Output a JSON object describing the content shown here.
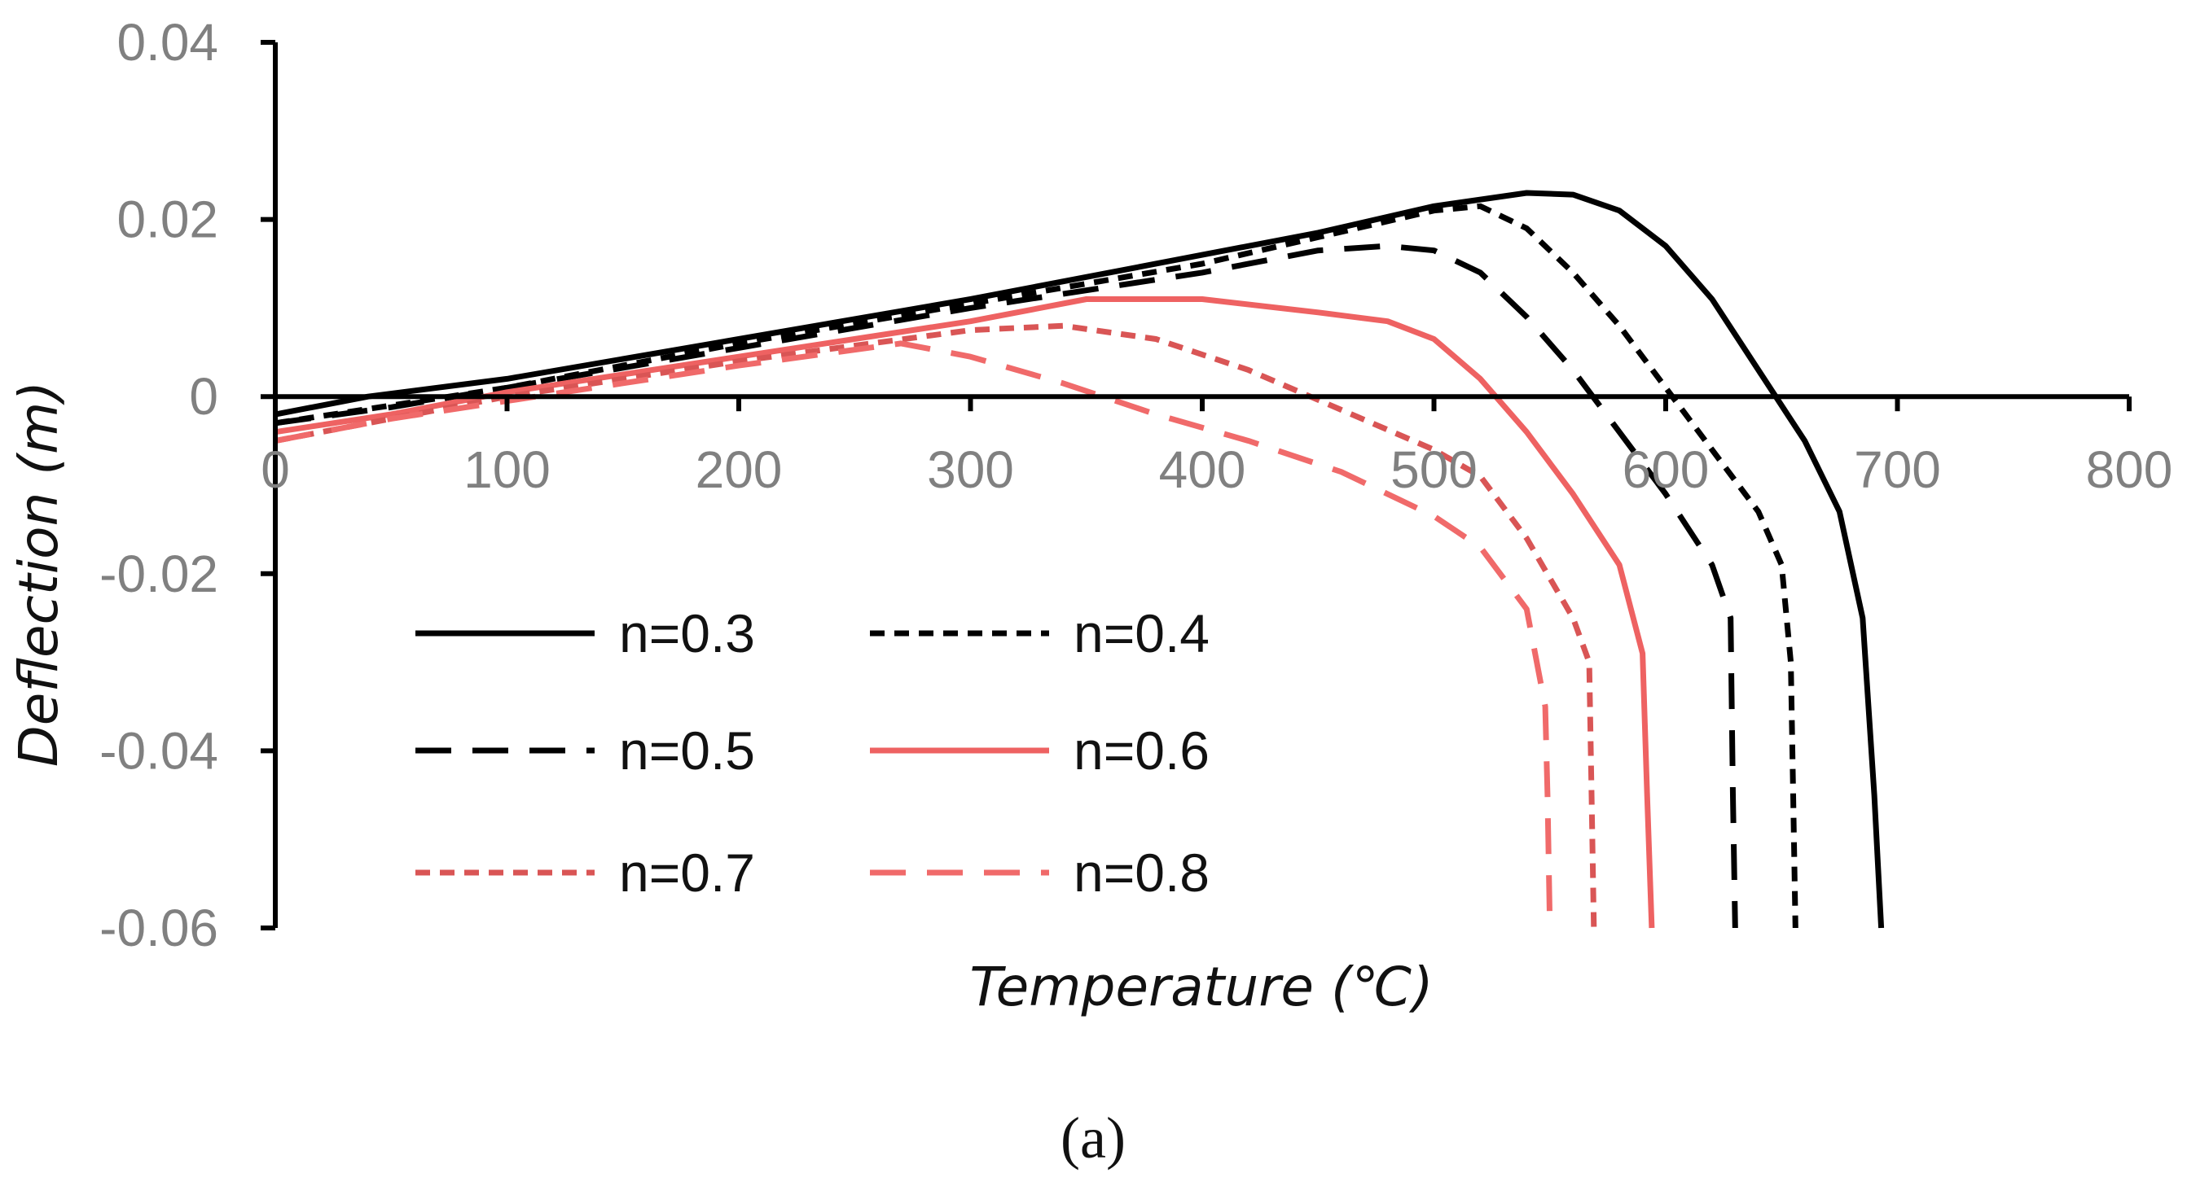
{
  "chart_data": {
    "type": "line",
    "title": "",
    "xlabel": "Temperature (℃)",
    "ylabel": "Deflection (m)",
    "caption": "(a)",
    "xlim": [
      0,
      800
    ],
    "ylim": [
      -0.06,
      0.04
    ],
    "x_ticks": [
      0,
      100,
      200,
      300,
      400,
      500,
      600,
      700,
      800
    ],
    "x_tick_labels": [
      "0",
      "100",
      "200",
      "300",
      "400",
      "500",
      "600",
      "700",
      "800"
    ],
    "y_ticks": [
      -0.06,
      -0.04,
      -0.02,
      0,
      0.02,
      0.04
    ],
    "y_tick_labels": [
      "-0.06",
      "-0.04",
      "-0.02",
      "0",
      "0.02",
      "0.04"
    ],
    "grid": false,
    "legend_position": "lower-left",
    "series": [
      {
        "name": "n=0.3",
        "color": "#000000",
        "dash": "solid",
        "points": [
          [
            0,
            -0.002
          ],
          [
            40,
            0
          ],
          [
            100,
            0.002
          ],
          [
            200,
            0.0065
          ],
          [
            300,
            0.011
          ],
          [
            400,
            0.016
          ],
          [
            450,
            0.0185
          ],
          [
            500,
            0.0215
          ],
          [
            540,
            0.023
          ],
          [
            560,
            0.0228
          ],
          [
            580,
            0.021
          ],
          [
            600,
            0.017
          ],
          [
            620,
            0.011
          ],
          [
            640,
            0.003
          ],
          [
            660,
            -0.005
          ],
          [
            675,
            -0.013
          ],
          [
            685,
            -0.025
          ],
          [
            690,
            -0.045
          ],
          [
            693,
            -0.06
          ]
        ]
      },
      {
        "name": "n=0.4",
        "color": "#000000",
        "dash": "short-dash",
        "points": [
          [
            0,
            -0.003
          ],
          [
            50,
            -0.001
          ],
          [
            100,
            0.001
          ],
          [
            200,
            0.006
          ],
          [
            300,
            0.0105
          ],
          [
            400,
            0.015
          ],
          [
            450,
            0.018
          ],
          [
            500,
            0.021
          ],
          [
            520,
            0.0215
          ],
          [
            540,
            0.019
          ],
          [
            560,
            0.014
          ],
          [
            580,
            0.008
          ],
          [
            600,
            0.001
          ],
          [
            620,
            -0.006
          ],
          [
            640,
            -0.013
          ],
          [
            650,
            -0.019
          ],
          [
            654,
            -0.03
          ],
          [
            655,
            -0.045
          ],
          [
            656,
            -0.06
          ]
        ]
      },
      {
        "name": "n=0.5",
        "color": "#000000",
        "dash": "long-dash",
        "points": [
          [
            0,
            -0.003
          ],
          [
            50,
            -0.0012
          ],
          [
            100,
            0.001
          ],
          [
            200,
            0.0055
          ],
          [
            300,
            0.01
          ],
          [
            400,
            0.014
          ],
          [
            450,
            0.0165
          ],
          [
            480,
            0.017
          ],
          [
            500,
            0.0165
          ],
          [
            520,
            0.014
          ],
          [
            540,
            0.009
          ],
          [
            560,
            0.003
          ],
          [
            580,
            -0.004
          ],
          [
            600,
            -0.011
          ],
          [
            620,
            -0.019
          ],
          [
            628,
            -0.025
          ],
          [
            629,
            -0.045
          ],
          [
            630,
            -0.06
          ]
        ]
      },
      {
        "name": "n=0.6",
        "color": "#ee6262",
        "dash": "solid",
        "points": [
          [
            0,
            -0.004
          ],
          [
            50,
            -0.002
          ],
          [
            100,
            0.0005
          ],
          [
            200,
            0.0045
          ],
          [
            300,
            0.0085
          ],
          [
            350,
            0.011
          ],
          [
            400,
            0.011
          ],
          [
            450,
            0.0095
          ],
          [
            480,
            0.0085
          ],
          [
            500,
            0.0065
          ],
          [
            520,
            0.002
          ],
          [
            540,
            -0.004
          ],
          [
            560,
            -0.011
          ],
          [
            580,
            -0.019
          ],
          [
            590,
            -0.029
          ],
          [
            592,
            -0.045
          ],
          [
            594,
            -0.06
          ]
        ]
      },
      {
        "name": "n=0.7",
        "color": "#d95555",
        "dash": "short-dash",
        "points": [
          [
            0,
            -0.005
          ],
          [
            50,
            -0.0025
          ],
          [
            100,
            0
          ],
          [
            200,
            0.004
          ],
          [
            300,
            0.0075
          ],
          [
            340,
            0.008
          ],
          [
            380,
            0.0065
          ],
          [
            420,
            0.003
          ],
          [
            460,
            -0.0015
          ],
          [
            500,
            -0.006
          ],
          [
            520,
            -0.009
          ],
          [
            540,
            -0.016
          ],
          [
            560,
            -0.025
          ],
          [
            567,
            -0.03
          ],
          [
            568,
            -0.045
          ],
          [
            569,
            -0.06
          ]
        ]
      },
      {
        "name": "n=0.8",
        "color": "#f06a6a",
        "dash": "long-dash",
        "points": [
          [
            0,
            -0.005
          ],
          [
            50,
            -0.0025
          ],
          [
            100,
            -0.0005
          ],
          [
            200,
            0.0035
          ],
          [
            270,
            0.006
          ],
          [
            300,
            0.0045
          ],
          [
            340,
            0.0015
          ],
          [
            380,
            -0.002
          ],
          [
            420,
            -0.005
          ],
          [
            460,
            -0.0085
          ],
          [
            500,
            -0.0135
          ],
          [
            520,
            -0.017
          ],
          [
            540,
            -0.024
          ],
          [
            548,
            -0.035
          ],
          [
            549,
            -0.045
          ],
          [
            550,
            -0.06
          ]
        ]
      }
    ]
  }
}
